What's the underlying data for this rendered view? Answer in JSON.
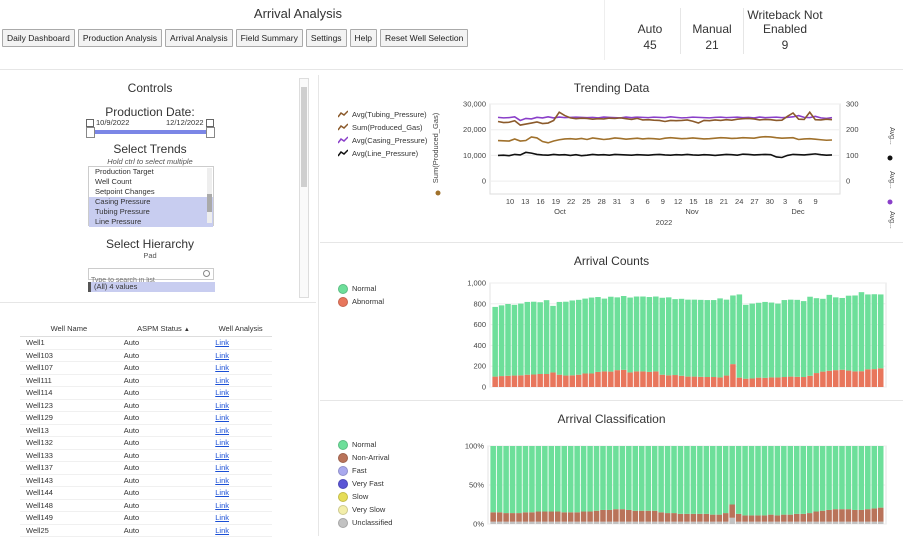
{
  "header": {
    "title": "Arrival Analysis",
    "nav": [
      "Daily Dashboard",
      "Production Analysis",
      "Arrival Analysis",
      "Field Summary",
      "Settings",
      "Help",
      "Reset Well Selection"
    ]
  },
  "kpis": [
    {
      "label": "Auto",
      "value": "45"
    },
    {
      "label": "Manual",
      "value": "21"
    },
    {
      "label": "Writeback Not Enabled",
      "value": "9"
    }
  ],
  "controls": {
    "title": "Controls",
    "production_date_label": "Production Date:",
    "date_start": "10/9/2022",
    "date_end": "12/12/2022",
    "trends_title": "Select Trends",
    "trends_hint": "Hold ctrl to select multiple",
    "trend_items": [
      {
        "label": "Production Target",
        "selected": false
      },
      {
        "label": "Well Count",
        "selected": false
      },
      {
        "label": "Setpoint Changes",
        "selected": false
      },
      {
        "label": "Casing Pressure",
        "selected": true
      },
      {
        "label": "Tubing Pressure",
        "selected": true
      },
      {
        "label": "Line Pressure",
        "selected": true
      }
    ],
    "hierarchy_title": "Select Hierarchy",
    "hierarchy_level": "Pad",
    "search_placeholder": "Type to search in list",
    "hierarchy_value": "(All) 4 values"
  },
  "table": {
    "headers": [
      "Well Name",
      "ASPM Status",
      "Well Analysis"
    ],
    "rows": [
      {
        "name": "Well1",
        "status": "Auto",
        "link": "Link"
      },
      {
        "name": "Well103",
        "status": "Auto",
        "link": "Link"
      },
      {
        "name": "Well107",
        "status": "Auto",
        "link": "Link"
      },
      {
        "name": "Well111",
        "status": "Auto",
        "link": "Link"
      },
      {
        "name": "Well114",
        "status": "Auto",
        "link": "Link"
      },
      {
        "name": "Well123",
        "status": "Auto",
        "link": "Link"
      },
      {
        "name": "Well129",
        "status": "Auto",
        "link": "Link"
      },
      {
        "name": "Well13",
        "status": "Auto",
        "link": "Link"
      },
      {
        "name": "Well132",
        "status": "Auto",
        "link": "Link"
      },
      {
        "name": "Well133",
        "status": "Auto",
        "link": "Link"
      },
      {
        "name": "Well137",
        "status": "Auto",
        "link": "Link"
      },
      {
        "name": "Well143",
        "status": "Auto",
        "link": "Link"
      },
      {
        "name": "Well144",
        "status": "Auto",
        "link": "Link"
      },
      {
        "name": "Well148",
        "status": "Auto",
        "link": "Link"
      },
      {
        "name": "Well149",
        "status": "Auto",
        "link": "Link"
      },
      {
        "name": "Well25",
        "status": "Auto",
        "link": "Link"
      }
    ]
  },
  "trending": {
    "title": "Trending Data",
    "legend": [
      {
        "label": "Avg(Tubing_Pressure)",
        "color": "#8B5A2B"
      },
      {
        "label": "Sum(Produced_Gas)",
        "color": "#8B5A2B"
      },
      {
        "label": "Avg(Casing_Pressure)",
        "color": "#8a3fc9"
      },
      {
        "label": "Avg(Line_Pressure)",
        "color": "#111111"
      }
    ],
    "y_left_label": "Sum(Produced_Gas)",
    "y_left_ticks": [
      "30,000",
      "20,000",
      "10,000",
      "0"
    ],
    "y_right_ticks": [
      "300",
      "200",
      "100",
      "0"
    ],
    "right_axis_labels": [
      "Avg...",
      "Avg...",
      "Avg..."
    ],
    "x_day_ticks": [
      "10",
      "13",
      "16",
      "19",
      "22",
      "25",
      "28",
      "31",
      "3",
      "6",
      "9",
      "12",
      "15",
      "18",
      "21",
      "24",
      "27",
      "30",
      "3",
      "6",
      "9"
    ],
    "x_month_ticks": [
      "Oct",
      "Nov",
      "Dec"
    ],
    "x_year": "2022"
  },
  "counts": {
    "title": "Arrival Counts",
    "legend": [
      {
        "label": "Normal",
        "color": "#6ddf9a"
      },
      {
        "label": "Abnormal",
        "color": "#e8765c"
      }
    ],
    "y_ticks": [
      "1,000",
      "800",
      "600",
      "400",
      "200",
      "0"
    ]
  },
  "classification": {
    "title": "Arrival Classification",
    "legend": [
      {
        "label": "Normal",
        "color": "#6ddf9a"
      },
      {
        "label": "Non-Arrival",
        "color": "#b9735a"
      },
      {
        "label": "Fast",
        "color": "#a9a9ee"
      },
      {
        "label": "Very Fast",
        "color": "#5a55d6"
      },
      {
        "label": "Slow",
        "color": "#e6dd57"
      },
      {
        "label": "Very Slow",
        "color": "#f3eeaa"
      },
      {
        "label": "Unclassified",
        "color": "#c2c2c2"
      }
    ],
    "y_ticks": [
      "100%",
      "50%",
      "0%"
    ]
  },
  "chart_data": [
    {
      "type": "line",
      "title": "Trending Data",
      "x_range": [
        "2022-10-09",
        "2022-12-12"
      ],
      "ylabel": "Sum(Produced_Gas)",
      "ylim": [
        -5000,
        30000
      ],
      "y2lim": [
        -50,
        300
      ],
      "legend_position": "top-left",
      "series": [
        {
          "name": "Avg(Casing_Pressure)",
          "axis": "right",
          "color": "#8a3fc9",
          "values": [
            248,
            246,
            247,
            250,
            236,
            244,
            242,
            248,
            246,
            250,
            246,
            249,
            247,
            248,
            249,
            248,
            247,
            248,
            246,
            249,
            248,
            247,
            246,
            249,
            247,
            249,
            248,
            247,
            249,
            248,
            247,
            250,
            248,
            246,
            247,
            249,
            248,
            247,
            246,
            248,
            249,
            247,
            248,
            249,
            247,
            248,
            246,
            249,
            247,
            248,
            249,
            247,
            248,
            250,
            255,
            248,
            247,
            252,
            246,
            244,
            247
          ]
        },
        {
          "name": "Avg(Tubing_Pressure)",
          "axis": "right",
          "color": "#8B5A2B",
          "values": [
            232,
            228,
            229,
            235,
            218,
            222,
            226,
            230,
            224,
            226,
            236,
            268,
            255,
            246,
            243,
            245,
            244,
            241,
            243,
            242,
            245,
            244,
            246,
            243,
            240,
            244,
            238,
            239,
            237,
            236,
            232,
            236,
            235,
            236,
            238,
            233,
            226,
            236,
            235,
            238,
            236,
            239,
            237,
            241,
            243,
            244,
            242,
            238,
            240,
            239,
            236,
            237,
            252,
            265,
            241,
            240,
            268,
            239,
            238,
            241,
            239
          ]
        },
        {
          "name": "Sum(Produced_Gas)",
          "axis": "left",
          "color": "#a0712c",
          "values": [
            15800,
            15700,
            15600,
            16400,
            15600,
            15800,
            17200,
            16800,
            15400,
            14900,
            15600,
            16100,
            16400,
            16500,
            16300,
            16600,
            16200,
            16800,
            16500,
            16200,
            16400,
            16800,
            16600,
            16300,
            16500,
            16700,
            16400,
            16600,
            16500,
            16300,
            16700,
            16900,
            16700,
            16500,
            16600,
            16800,
            16600,
            16400,
            16500,
            16700,
            16900,
            16800,
            16600,
            16700,
            16900,
            16800,
            16700,
            17100,
            17300,
            17200,
            16900,
            16700,
            16800,
            16900,
            16200,
            16400,
            16500,
            16300,
            16100,
            15900,
            16000
          ]
        },
        {
          "name": "Avg(Line_Pressure)",
          "axis": "right",
          "color": "#111111",
          "values": [
            100,
            101,
            99,
            104,
            102,
            112,
            109,
            104,
            102,
            101,
            104,
            102,
            103,
            100,
            103,
            99,
            101,
            104,
            102,
            103,
            101,
            104,
            103,
            102,
            101,
            103,
            102,
            101,
            103,
            104,
            102,
            101,
            103,
            102,
            104,
            102,
            101,
            103,
            102,
            100,
            102,
            104,
            103,
            101,
            105,
            104,
            102,
            103,
            104,
            103,
            94,
            92,
            100,
            104,
            103,
            102,
            104,
            106,
            103,
            101,
            102
          ]
        }
      ]
    },
    {
      "type": "bar",
      "title": "Arrival Counts",
      "stacked": true,
      "ylim": [
        0,
        1000
      ],
      "series": [
        {
          "name": "Normal",
          "values": [
            670,
            680,
            690,
            680,
            690,
            700,
            700,
            690,
            710,
            640,
            700,
            710,
            720,
            720,
            720,
            730,
            720,
            700,
            720,
            700,
            710,
            720,
            720,
            720,
            720,
            720,
            740,
            750,
            730,
            740,
            740,
            740,
            740,
            740,
            740,
            760,
            730,
            660,
            800,
            710,
            720,
            720,
            730,
            720,
            710,
            740,
            740,
            740,
            730,
            760,
            720,
            700,
            730,
            700,
            690,
            720,
            730,
            760,
            720,
            720,
            710
          ]
        },
        {
          "name": "Abnormal",
          "values": [
            100,
            105,
            108,
            110,
            112,
            118,
            120,
            125,
            125,
            140,
            118,
            110,
            112,
            118,
            130,
            130,
            145,
            150,
            148,
            162,
            165,
            140,
            150,
            150,
            145,
            150,
            118,
            112,
            115,
            108,
            100,
            100,
            98,
            96,
            96,
            92,
            110,
            220,
            90,
            80,
            82,
            90,
            88,
            92,
            92,
            96,
            100,
            98,
            96,
            108,
            134,
            148,
            156,
            162,
            166,
            158,
            150,
            152,
            170,
            172,
            180
          ]
        }
      ]
    },
    {
      "type": "bar",
      "title": "Arrival Classification",
      "stacked": true,
      "ylim": [
        0,
        100
      ],
      "series": [
        {
          "name": "Normal",
          "values": [
            85,
            85,
            86,
            86,
            86,
            85,
            85,
            84,
            84,
            84,
            84,
            85,
            85,
            85,
            84,
            84,
            83,
            82,
            82,
            81,
            81,
            82,
            83,
            83,
            83,
            83,
            85,
            86,
            86,
            87,
            87,
            87,
            87,
            87,
            88,
            88,
            86,
            75,
            87,
            89,
            89,
            89,
            89,
            88,
            89,
            88,
            88,
            87,
            87,
            86,
            84,
            83,
            82,
            81,
            81,
            81,
            82,
            82,
            81,
            80,
            79
          ]
        },
        {
          "name": "Non-Arrival",
          "values": [
            12,
            12,
            11,
            11,
            11,
            12,
            12,
            13,
            13,
            13,
            13,
            12,
            12,
            12,
            13,
            13,
            14,
            15,
            15,
            16,
            16,
            15,
            14,
            14,
            14,
            14,
            12,
            11,
            11,
            10,
            10,
            10,
            10,
            10,
            9,
            9,
            11,
            17,
            10,
            8,
            8,
            8,
            8,
            9,
            8,
            9,
            9,
            10,
            10,
            11,
            13,
            14,
            15,
            16,
            16,
            16,
            15,
            15,
            16,
            17,
            18
          ]
        },
        {
          "name": "Unclassified",
          "values": [
            3,
            3,
            3,
            3,
            3,
            3,
            3,
            3,
            3,
            3,
            3,
            3,
            3,
            3,
            3,
            3,
            3,
            3,
            3,
            3,
            3,
            3,
            3,
            3,
            3,
            3,
            3,
            3,
            3,
            3,
            3,
            3,
            3,
            3,
            3,
            3,
            3,
            8,
            3,
            3,
            3,
            3,
            3,
            3,
            3,
            3,
            3,
            3,
            3,
            3,
            3,
            3,
            3,
            3,
            3,
            3,
            3,
            3,
            3,
            3,
            3
          ]
        }
      ]
    }
  ]
}
